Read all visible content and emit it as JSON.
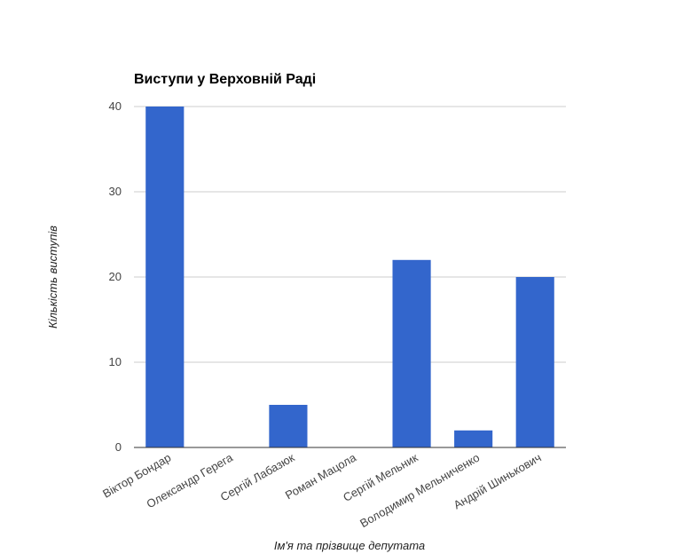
{
  "chart_data": {
    "type": "bar",
    "title": "Виступи у Верховній Раді",
    "xlabel": "Ім'я та прізвище депутата",
    "ylabel": "Кількість виступів",
    "categories": [
      "Віктор Бондар",
      "Олександр Герега",
      "Сергій Лабазюк",
      "Роман Мацола",
      "Сергій Мельник",
      "Володимир Мельниченко",
      "Андрій Шинькович"
    ],
    "values": [
      40,
      0,
      5,
      0,
      22,
      2,
      20
    ],
    "ylim": [
      0,
      40
    ],
    "yticks": [
      0,
      10,
      20,
      30,
      40
    ],
    "grid": true,
    "legend": "none",
    "colors": {
      "bar": "#3366cc",
      "grid": "#cccccc",
      "axis": "#333333"
    }
  }
}
